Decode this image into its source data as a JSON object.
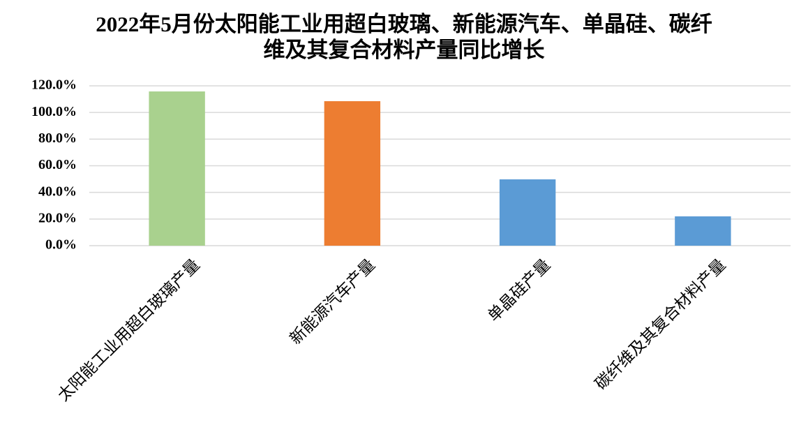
{
  "chart_data": {
    "type": "bar",
    "title": "2022年5月份太阳能工业用超白玻璃、新能源汽车、单晶硅、碳纤维及其复合材料产量同比增长",
    "categories": [
      "太阳能工业用超白玻璃产量",
      "新能源汽车产量",
      "单晶硅产量",
      "碳纤维及其复合材料产量"
    ],
    "values": [
      115.8,
      108.5,
      49.8,
      22.0
    ],
    "colors": [
      "#a9d18e",
      "#ed7d31",
      "#5b9bd5",
      "#5b9bd5"
    ],
    "ylim": [
      0,
      120
    ],
    "yticks": [
      {
        "value": 0,
        "label": "0.0%"
      },
      {
        "value": 20,
        "label": "20.0%"
      },
      {
        "value": 40,
        "label": "40.0%"
      },
      {
        "value": 60,
        "label": "60.0%"
      },
      {
        "value": 80,
        "label": "80.0%"
      },
      {
        "value": 100,
        "label": "100.0%"
      },
      {
        "value": 120,
        "label": "120.0%"
      }
    ],
    "grid": true
  }
}
